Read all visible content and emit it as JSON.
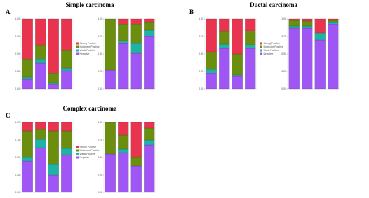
{
  "chart_data": [
    {
      "type": "bar",
      "stacked": true,
      "panel": "A",
      "title": "Simple carcinoma",
      "legend": true,
      "categories": [
        null,
        null,
        null,
        null
      ],
      "ylim": [
        0,
        1
      ],
      "yticks": [
        {
          "value": 0,
          "label": "0.00"
        },
        {
          "value": 0.25,
          "label": "0.25"
        },
        {
          "value": 0.5,
          "label": "0.50"
        },
        {
          "value": 0.75,
          "label": "0.75"
        },
        {
          "value": 1,
          "label": "1.00"
        }
      ],
      "series": [
        {
          "name": "Negative",
          "color": "#a055f5",
          "values": [
            0.14,
            0.37,
            0.07,
            0.26
          ]
        },
        {
          "name": "Weak Positive",
          "color": "#1fb3a5",
          "values": [
            0.03,
            0.05,
            0.02,
            0.04
          ]
        },
        {
          "name": "Moderate Positive",
          "color": "#6b8e0f",
          "values": [
            0.25,
            0.2,
            0.13,
            0.25
          ]
        },
        {
          "name": "Strong Positive",
          "color": "#e8344e",
          "values": [
            0.58,
            0.38,
            0.78,
            0.45
          ]
        }
      ]
    },
    {
      "type": "bar",
      "stacked": true,
      "legend": false,
      "categories": [
        null,
        null,
        null,
        null
      ],
      "ylim": [
        0,
        1
      ],
      "yticks": [
        {
          "value": 0,
          "label": "0.00"
        },
        {
          "value": 0.25,
          "label": "0.25"
        },
        {
          "value": 0.5,
          "label": "0.50"
        },
        {
          "value": 0.75,
          "label": "0.75"
        },
        {
          "value": 1,
          "label": "1.00"
        }
      ],
      "series": [
        {
          "color": "#a055f5",
          "values": [
            0.27,
            0.65,
            0.51,
            0.75
          ]
        },
        {
          "color": "#1fb3a5",
          "values": [
            0,
            0.04,
            0.14,
            0.09
          ]
        },
        {
          "color": "#6b8e0f",
          "values": [
            0.73,
            0.23,
            0.27,
            0.11
          ]
        },
        {
          "color": "#e8344e",
          "values": [
            0,
            0.08,
            0.08,
            0.05
          ]
        }
      ]
    },
    {
      "type": "bar",
      "stacked": true,
      "panel": "B",
      "title": "Ductal carcinoma",
      "legend": true,
      "categories": [
        null,
        null,
        null,
        null
      ],
      "ylim": [
        0,
        1
      ],
      "yticks": [
        {
          "value": 0,
          "label": "0.00"
        },
        {
          "value": 0.25,
          "label": "0.25"
        },
        {
          "value": 0.5,
          "label": "0.50"
        },
        {
          "value": 0.75,
          "label": "0.75"
        },
        {
          "value": 1,
          "label": "1.00"
        }
      ],
      "series": [
        {
          "name": "Negative",
          "color": "#a055f5",
          "values": [
            0.22,
            0.58,
            0.18,
            0.58
          ]
        },
        {
          "name": "Weak Positive",
          "color": "#1fb3a5",
          "values": [
            0.06,
            0.06,
            0.02,
            0.05
          ]
        },
        {
          "name": "Moderate Positive",
          "color": "#6b8e0f",
          "values": [
            0.25,
            0.18,
            0.3,
            0.2
          ]
        },
        {
          "name": "Strong Positive",
          "color": "#e8344e",
          "values": [
            0.47,
            0.18,
            0.5,
            0.17
          ]
        }
      ]
    },
    {
      "type": "bar",
      "stacked": true,
      "legend": false,
      "categories": [
        null,
        null,
        null,
        null
      ],
      "ylim": [
        0,
        1
      ],
      "yticks": [
        {
          "value": 0,
          "label": "0.00"
        },
        {
          "value": 0.25,
          "label": "0.25"
        },
        {
          "value": 0.5,
          "label": "0.50"
        },
        {
          "value": 0.75,
          "label": "0.75"
        },
        {
          "value": 1,
          "label": "1.00"
        }
      ],
      "series": [
        {
          "color": "#a055f5",
          "values": [
            0.87,
            0.87,
            0.7,
            0.92
          ]
        },
        {
          "color": "#1fb3a5",
          "values": [
            0.03,
            0.03,
            0.1,
            0.03
          ]
        },
        {
          "color": "#6b8e0f",
          "values": [
            0.08,
            0.07,
            0,
            0.03
          ]
        },
        {
          "color": "#e8344e",
          "values": [
            0.02,
            0.03,
            0.2,
            0.02
          ]
        }
      ]
    },
    {
      "type": "bar",
      "stacked": true,
      "panel": "C",
      "title": "Complex carcinoma",
      "legend": true,
      "categories": [
        null,
        null,
        null,
        null
      ],
      "ylim": [
        0,
        1
      ],
      "yticks": [
        {
          "value": 0,
          "label": "0.00"
        },
        {
          "value": 0.25,
          "label": "0.25"
        },
        {
          "value": 0.5,
          "label": "0.50"
        },
        {
          "value": 0.75,
          "label": "0.75"
        },
        {
          "value": 1,
          "label": "1.00"
        }
      ],
      "series": [
        {
          "name": "Negative",
          "color": "#a055f5",
          "values": [
            0.45,
            0.64,
            0.25,
            0.54
          ]
        },
        {
          "name": "Weak Positive",
          "color": "#1fb3a5",
          "values": [
            0.05,
            0.12,
            0.15,
            0.09
          ]
        },
        {
          "name": "Moderate Positive",
          "color": "#6b8e0f",
          "values": [
            0.38,
            0.14,
            0.48,
            0.25
          ]
        },
        {
          "name": "Strong Positive",
          "color": "#e8344e",
          "values": [
            0.12,
            0.1,
            0.12,
            0.12
          ]
        }
      ]
    },
    {
      "type": "bar",
      "stacked": true,
      "legend": false,
      "categories": [
        null,
        null,
        null,
        null
      ],
      "ylim": [
        0,
        1
      ],
      "yticks": [
        {
          "value": 0,
          "label": "0.00"
        },
        {
          "value": 0.25,
          "label": "0.25"
        },
        {
          "value": 0.5,
          "label": "0.50"
        },
        {
          "value": 0.75,
          "label": "0.75"
        },
        {
          "value": 1,
          "label": "1.00"
        }
      ],
      "series": [
        {
          "color": "#a055f5",
          "values": [
            0.55,
            0.57,
            0.38,
            0.68
          ]
        },
        {
          "color": "#1fb3a5",
          "values": [
            0,
            0.05,
            0,
            0.07
          ]
        },
        {
          "color": "#6b8e0f",
          "values": [
            0.45,
            0.2,
            0.12,
            0.17
          ]
        },
        {
          "color": "#e8344e",
          "values": [
            0,
            0.18,
            0.5,
            0.08
          ]
        }
      ]
    }
  ]
}
